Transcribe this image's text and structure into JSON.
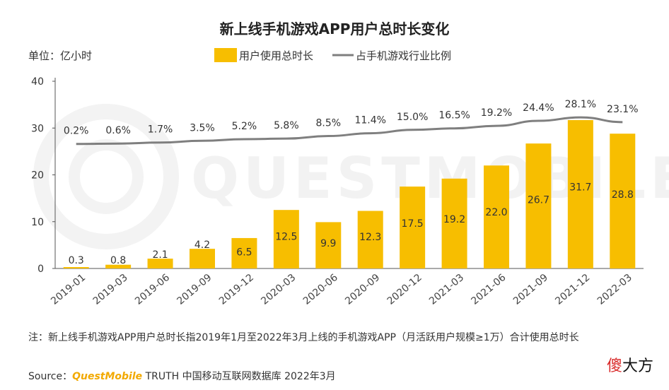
{
  "chart_data": {
    "type": "bar",
    "title": "新上线手机游戏APP用户总时长变化",
    "unit_label": "单位：亿小时",
    "categories": [
      "2019-01",
      "2019-03",
      "2019-06",
      "2019-09",
      "2019-12",
      "2020-03",
      "2020-06",
      "2020-09",
      "2020-12",
      "2021-03",
      "2021-06",
      "2021-09",
      "2021-12",
      "2022-03"
    ],
    "series": [
      {
        "name": "用户使用总时长",
        "kind": "bar",
        "color": "#f7be00",
        "values": [
          0.3,
          0.8,
          2.1,
          4.2,
          6.5,
          12.5,
          9.9,
          12.3,
          17.5,
          19.2,
          22.0,
          26.7,
          31.7,
          28.8
        ],
        "labels": [
          "0.3",
          "0.8",
          "2.1",
          "4.2",
          "6.5",
          "12.5",
          "9.9",
          "12.3",
          "17.5",
          "19.2",
          "22.0",
          "26.7",
          "31.7",
          "28.8"
        ]
      },
      {
        "name": "占手机游戏行业比例",
        "kind": "line",
        "color": "#7f7f7f",
        "values": [
          0.2,
          0.6,
          1.7,
          3.5,
          5.2,
          5.8,
          8.5,
          11.4,
          15.0,
          16.5,
          19.2,
          24.4,
          28.1,
          23.1
        ],
        "labels": [
          "0.2%",
          "0.6%",
          "1.7%",
          "3.5%",
          "5.2%",
          "5.8%",
          "8.5%",
          "11.4%",
          "15.0%",
          "16.5%",
          "19.2%",
          "24.4%",
          "28.1%",
          "23.1%"
        ]
      }
    ],
    "ylim": [
      0,
      40
    ],
    "yticks": [
      "0",
      "10",
      "20",
      "30",
      "40"
    ],
    "legend_position": "top",
    "grid": false
  },
  "watermark": "QUESTMOBILE",
  "note": "注：新上线手机游戏APP用户总时长指2019年1月至2022年3月上线的手机游戏APP（月活跃用户规模≥1万）合计使用总时长",
  "source": {
    "prefix": "Source：",
    "brand": "QuestMobile",
    "rest": " TRUTH 中国移动互联网数据库 2022年3月"
  },
  "corner_brand": {
    "part1": "傻",
    "part2": "大方"
  }
}
